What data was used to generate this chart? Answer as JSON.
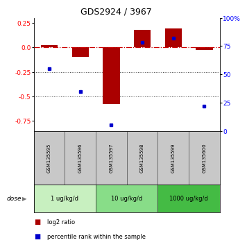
{
  "title": "GDS2924 / 3967",
  "samples": [
    "GSM135595",
    "GSM135596",
    "GSM135597",
    "GSM135598",
    "GSM135599",
    "GSM135600"
  ],
  "log2_ratio": [
    0.02,
    -0.1,
    -0.58,
    0.18,
    0.19,
    -0.03
  ],
  "percentile_rank": [
    55,
    35,
    5,
    78,
    82,
    22
  ],
  "dose_groups": [
    {
      "label": "1 ug/kg/d",
      "samples": [
        0,
        1
      ],
      "color": "#c8f0c0"
    },
    {
      "label": "10 ug/kg/d",
      "samples": [
        2,
        3
      ],
      "color": "#88dd88"
    },
    {
      "label": "1000 ug/kg/d",
      "samples": [
        4,
        5
      ],
      "color": "#44bb44"
    }
  ],
  "left_ylim": [
    -0.85,
    0.3
  ],
  "right_ylim": [
    0,
    100
  ],
  "left_yticks": [
    0.25,
    0.0,
    -0.25,
    -0.5,
    -0.75
  ],
  "right_yticks": [
    100,
    75,
    50,
    25,
    0
  ],
  "bar_color": "#aa0000",
  "point_color": "#0000cc",
  "hline_color": "#cc0000",
  "dotted_color": "#444444",
  "sample_bg_color": "#c8c8c8",
  "legend_bar_label": "log2 ratio",
  "legend_point_label": "percentile rank within the sample",
  "dose_label": "dose"
}
